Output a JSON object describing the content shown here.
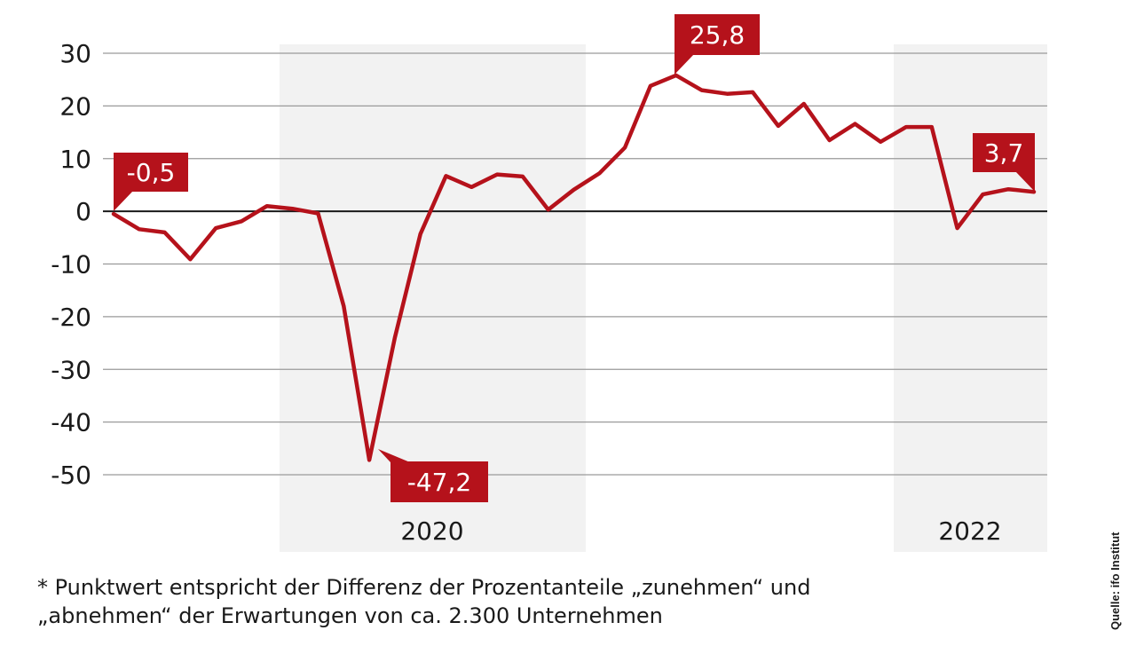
{
  "chart_data": {
    "type": "line",
    "ylim": [
      -50,
      30
    ],
    "y_ticks": [
      "30",
      "20",
      "10",
      "0",
      "-10",
      "-20",
      "-30",
      "-40",
      "-50"
    ],
    "x_labels": [
      "2020",
      "2022"
    ],
    "grid": true,
    "highlighted_periods": [
      "2020",
      "2022"
    ],
    "line_color": "#b5121b",
    "series": [
      {
        "values": [
          -0.5,
          -3.4,
          -4,
          -9.1,
          -3.2,
          -1.9,
          1,
          0.5,
          -0.4,
          -18,
          -47.2,
          -24,
          -4.3,
          6.7,
          4.6,
          7,
          6.6,
          0.3,
          4.1,
          7.2,
          12.1,
          23.8,
          25.8,
          23,
          22.3,
          22.6,
          16.2,
          20.4,
          13.5,
          16.6,
          13.2,
          16,
          16,
          -3.2,
          3.2,
          4.2,
          3.7
        ]
      }
    ],
    "annotations": [
      {
        "label": "-0,5",
        "index": 0
      },
      {
        "label": "-47,2",
        "index": 10
      },
      {
        "label": "25,8",
        "index": 22
      },
      {
        "label": "3,7",
        "index": 36
      }
    ]
  },
  "footnote": {
    "line1": "* Punktwert entspricht der Differenz der Prozentanteile „zunehmen“ und",
    "line2": "„abnehmen“ der Erwartungen von ca. 2.300 Unternehmen"
  },
  "source": "Quelle: ifo Institut"
}
